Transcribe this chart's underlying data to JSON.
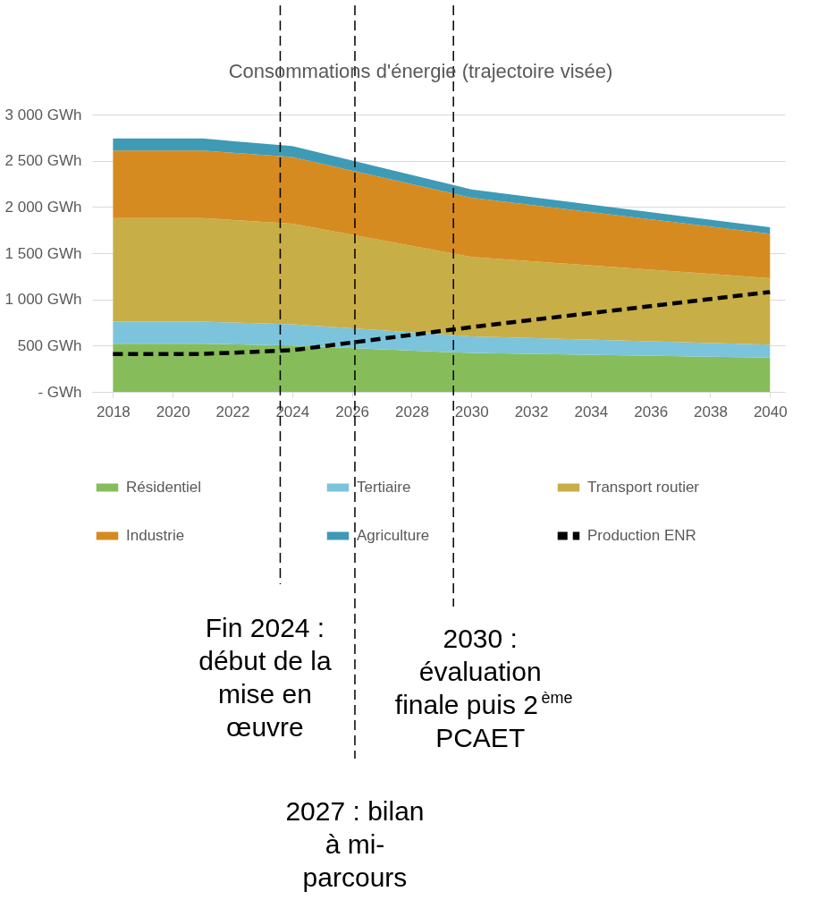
{
  "chart_data": {
    "type": "area",
    "stacked": true,
    "title": "Consommations d'énergie (trajectoire visée)",
    "x": [
      2018,
      2021,
      2024,
      2030,
      2040
    ],
    "xlim": [
      2017.3,
      2040.5
    ],
    "xticks": [
      2018,
      2020,
      2022,
      2024,
      2026,
      2028,
      2030,
      2032,
      2034,
      2036,
      2038,
      2040
    ],
    "ylim": [
      0,
      3000
    ],
    "yticks": [
      {
        "value": 0,
        "label": "- GWh"
      },
      {
        "value": 500,
        "label": "500 GWh"
      },
      {
        "value": 1000,
        "label": "1 000 GWh"
      },
      {
        "value": 1500,
        "label": "1 500 GWh"
      },
      {
        "value": 2000,
        "label": "2 000 GWh"
      },
      {
        "value": 2500,
        "label": "2 500 GWh"
      },
      {
        "value": 3000,
        "label": "3 000 GWh"
      }
    ],
    "grid": "y",
    "legend": "bottom",
    "marker": "none",
    "series": [
      {
        "name": "Résidentiel",
        "color": "#86bd5a",
        "values": [
          520,
          520,
          500,
          420,
          370
        ]
      },
      {
        "name": "Tertiaire",
        "color": "#7bc4dc",
        "values": [
          240,
          240,
          230,
          180,
          140
        ]
      },
      {
        "name": "Transport routier",
        "color": "#c8ae46",
        "values": [
          1120,
          1120,
          1090,
          860,
          720
        ]
      },
      {
        "name": "Industrie",
        "color": "#d68b21",
        "values": [
          730,
          730,
          720,
          640,
          480
        ]
      },
      {
        "name": "Agriculture",
        "color": "#3f9ab6",
        "values": [
          130,
          130,
          120,
          90,
          70
        ]
      },
      {
        "name": "Production ENR",
        "type": "line",
        "color": "#000000",
        "line_style": "dashed",
        "values": [
          410,
          410,
          450,
          700,
          1080
        ]
      }
    ],
    "ref_lines": [
      {
        "axis": "x",
        "value": 2023.6,
        "label": "Fin 2024 : début de la mise en œuvre",
        "color": "#000000",
        "line_style": "dashed"
      },
      {
        "axis": "x",
        "value": 2026.1,
        "label": "2027 : bilan à mi-parcours",
        "color": "#000000",
        "line_style": "dashed"
      },
      {
        "axis": "x",
        "value": 2029.4,
        "label": "2030 : évaluation finale puis 2$^{ème}$ PCAET",
        "color": "#000000",
        "line_style": "dashed"
      }
    ]
  }
}
